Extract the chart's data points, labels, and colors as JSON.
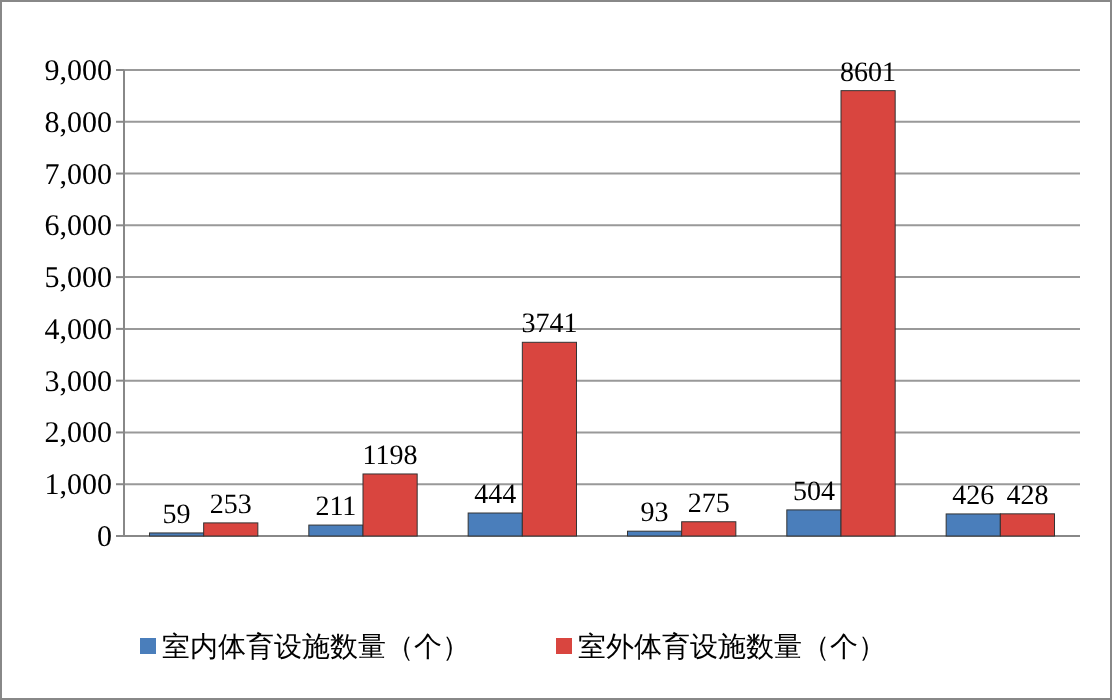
{
  "chart_data": {
    "type": "bar",
    "categories": [
      null,
      null,
      null,
      null,
      null,
      null
    ],
    "series": [
      {
        "name": "室内体育设施数量（个）",
        "color": "#4a7ebb",
        "values": [
          59,
          211,
          444,
          93,
          504,
          426
        ]
      },
      {
        "name": "室外体育设施数量（个）",
        "color": "#d9453f",
        "values": [
          253,
          1198,
          3741,
          275,
          8601,
          428
        ]
      }
    ],
    "ylim": [
      0,
      9000
    ],
    "yticks": [
      {
        "value": 0,
        "label": "0"
      },
      {
        "value": 1000,
        "label": "1,000"
      },
      {
        "value": 2000,
        "label": "2,000"
      },
      {
        "value": 3000,
        "label": "3,000"
      },
      {
        "value": 4000,
        "label": "4,000"
      },
      {
        "value": 5000,
        "label": "5,000"
      },
      {
        "value": 6000,
        "label": "6,000"
      },
      {
        "value": 7000,
        "label": "7,000"
      },
      {
        "value": 8000,
        "label": "8,000"
      },
      {
        "value": 9000,
        "label": "9,000"
      }
    ],
    "grid": "y",
    "data_labels": true,
    "legend": "bottom"
  }
}
